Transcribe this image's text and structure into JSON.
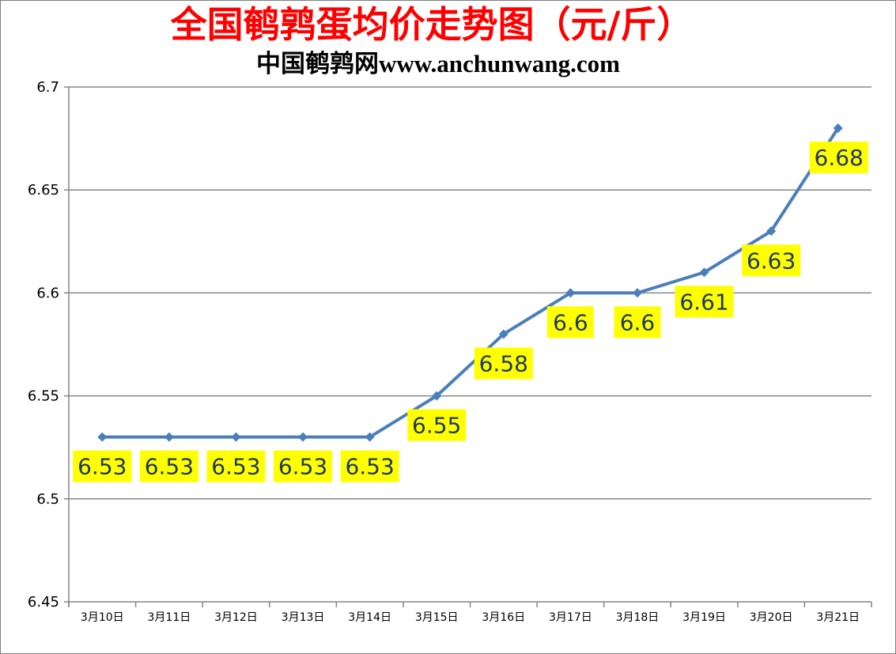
{
  "chart_data": {
    "type": "line",
    "title": "全国鹌鹑蛋均价走势图（元/斤）",
    "subtitle": "中国鹌鹑网www.anchunwang.com",
    "categories": [
      "3月10日",
      "3月11日",
      "3月12日",
      "3月13日",
      "3月14日",
      "3月15日",
      "3月16日",
      "3月17日",
      "3月18日",
      "3月19日",
      "3月20日",
      "3月21日"
    ],
    "series": [
      {
        "values": [
          6.53,
          6.53,
          6.53,
          6.53,
          6.53,
          6.55,
          6.58,
          6.6,
          6.6,
          6.61,
          6.63,
          6.68
        ]
      }
    ],
    "data_labels": [
      "6.53",
      "6.53",
      "6.53",
      "6.53",
      "6.53",
      "6.55",
      "6.58",
      "6.6",
      "6.6",
      "6.61",
      "6.63",
      "6.68"
    ],
    "ylim": [
      6.45,
      6.7
    ],
    "yticks": [
      "6.45",
      "6.5",
      "6.55",
      "6.6",
      "6.65",
      "6.7"
    ],
    "grid": true,
    "legend": "none",
    "colors": {
      "line": "#4a7ebb",
      "label_bg": "#ffff00",
      "label_text": "#1f3864",
      "title": "#ff0000",
      "grid": "#868686"
    }
  }
}
